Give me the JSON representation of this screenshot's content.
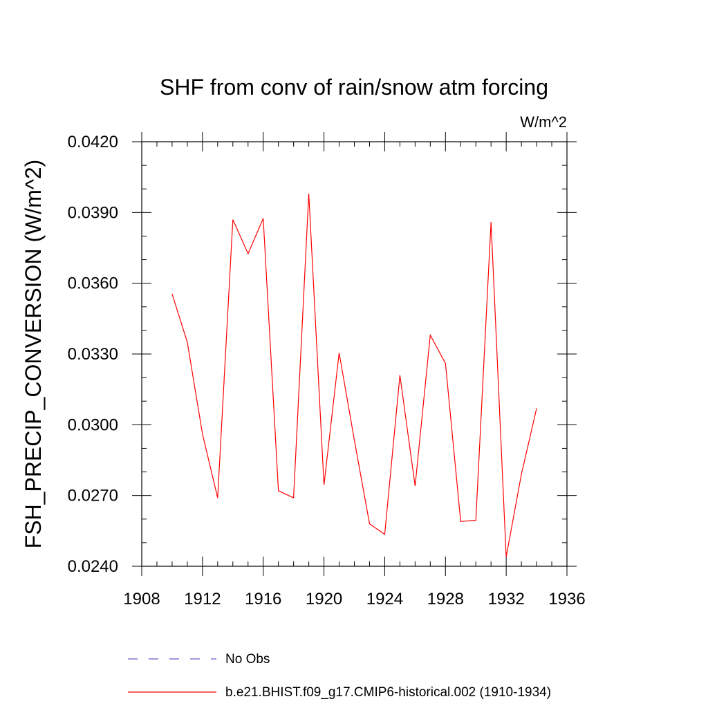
{
  "chart_data": {
    "type": "line",
    "title": "SHF from conv of rain/snow atm forcing",
    "units": "W/m^2",
    "ylabel": "FSH_PRECIP_CONVERSION  (W/m^2)",
    "xlabel": "",
    "xlim": [
      1908,
      1936
    ],
    "ylim": [
      0.024,
      0.042
    ],
    "xticks": [
      1908,
      1912,
      1916,
      1920,
      1924,
      1928,
      1932,
      1936
    ],
    "xtick_labels": [
      "1908",
      "1912",
      "1916",
      "1920",
      "1924",
      "1928",
      "1932",
      "1936"
    ],
    "yticks": [
      0.024,
      0.027,
      0.03,
      0.033,
      0.036,
      0.039,
      0.042
    ],
    "ytick_labels": [
      "0.0240",
      "0.0270",
      "0.0300",
      "0.0330",
      "0.0360",
      "0.0390",
      "0.0420"
    ],
    "grid": false,
    "legend_position": "bottom",
    "series": [
      {
        "name": "b.e21.BHIST.f09_g17.CMIP6-historical.002 (1910-1934)",
        "color": "#ff0000",
        "dash": "solid",
        "x": [
          1910,
          1911,
          1912,
          1913,
          1914,
          1915,
          1916,
          1917,
          1918,
          1919,
          1920,
          1921,
          1922,
          1923,
          1924,
          1925,
          1926,
          1927,
          1928,
          1929,
          1930,
          1931,
          1932,
          1933,
          1934
        ],
        "values": [
          0.03555,
          0.0335,
          0.0296,
          0.0269,
          0.0387,
          0.03725,
          0.03875,
          0.0272,
          0.0269,
          0.0398,
          0.02745,
          0.03305,
          0.02935,
          0.0258,
          0.02535,
          0.0321,
          0.0274,
          0.0338,
          0.0326,
          0.0259,
          0.02595,
          0.0386,
          0.0244,
          0.0279,
          0.0307
        ]
      }
    ],
    "legend": [
      {
        "name": "No Obs",
        "color": "#6a5acd",
        "dash": "dashed"
      },
      {
        "name": "b.e21.BHIST.f09_g17.CMIP6-historical.002 (1910-1934)",
        "color": "#ff0000",
        "dash": "solid"
      }
    ]
  }
}
